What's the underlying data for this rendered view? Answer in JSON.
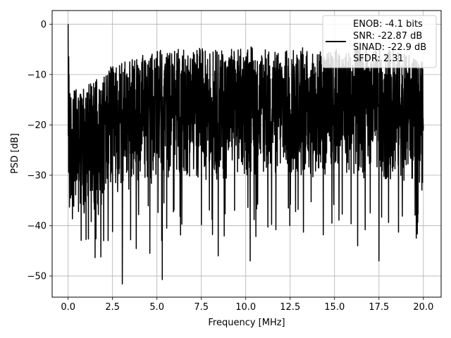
{
  "chart_data": {
    "type": "line",
    "title": "",
    "xlabel": "Frequency [MHz]",
    "ylabel": "PSD [dB]",
    "xlim": [
      -0.9,
      21.0
    ],
    "ylim": [
      -54.2,
      2.7
    ],
    "x_ticks": [
      0.0,
      2.5,
      5.0,
      7.5,
      10.0,
      12.5,
      15.0,
      17.5,
      20.0
    ],
    "x_tick_labels": [
      "0.0",
      "2.5",
      "5.0",
      "7.5",
      "10.0",
      "12.5",
      "15.0",
      "17.5",
      "20.0"
    ],
    "y_ticks": [
      0,
      -10,
      -20,
      -30,
      -40,
      -50
    ],
    "y_tick_labels": [
      "0",
      "−10",
      "−20",
      "−30",
      "−40",
      "−50"
    ],
    "grid": true,
    "legend_position": "top-right",
    "legend": {
      "lines": [
        "ENOB: -4.1 bits",
        "SNR: -22.87 dB",
        "SINAD: -22.9 dB",
        "SFDR: 2.31"
      ]
    },
    "series": [
      {
        "color": "#000000",
        "x_range": [
          0.0,
          20.0
        ],
        "peak": [
          0.0,
          0.0
        ],
        "notable_dips": [
          [
            0.3,
            -36.0
          ],
          [
            0.9,
            -37.5
          ],
          [
            1.3,
            -39.2
          ],
          [
            1.7,
            -37.8
          ],
          [
            2.0,
            -43.0
          ],
          [
            2.5,
            -41.2
          ],
          [
            3.05,
            -51.6
          ],
          [
            4.6,
            -45.5
          ],
          [
            5.3,
            -50.7
          ],
          [
            5.55,
            -40.5
          ],
          [
            6.3,
            -38.2
          ],
          [
            8.45,
            -46.0
          ],
          [
            10.25,
            -47.0
          ],
          [
            12.4,
            -36.5
          ],
          [
            14.85,
            -39.5
          ],
          [
            16.3,
            -44.0
          ],
          [
            17.5,
            -47.0
          ],
          [
            18.6,
            -41.3
          ],
          [
            19.6,
            -42.5
          ]
        ],
        "notable_peaks": [
          [
            0.45,
            -13.0
          ],
          [
            1.6,
            -11.0
          ],
          [
            2.4,
            -8.5
          ],
          [
            3.2,
            -7.5
          ],
          [
            4.2,
            -6.2
          ],
          [
            5.2,
            -5.2
          ],
          [
            6.2,
            -5.0
          ],
          [
            7.4,
            -4.8
          ],
          [
            8.3,
            -5.2
          ],
          [
            9.2,
            -5.0
          ],
          [
            10.3,
            -4.5
          ],
          [
            11.1,
            -5.1
          ],
          [
            12.3,
            -5.3
          ],
          [
            13.2,
            -4.7
          ],
          [
            14.2,
            -5.5
          ],
          [
            15.1,
            -5.0
          ],
          [
            16.2,
            -4.5
          ],
          [
            17.3,
            -5.3
          ],
          [
            18.3,
            -5.0
          ],
          [
            19.2,
            -6.2
          ],
          [
            19.9,
            -7.5
          ]
        ]
      }
    ]
  }
}
